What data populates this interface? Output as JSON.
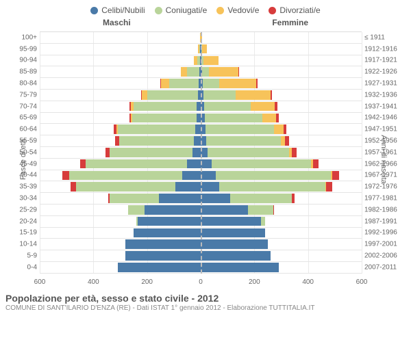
{
  "chart": {
    "type": "population-pyramid",
    "title": "Popolazione per età, sesso e stato civile - 2012",
    "subtitle": "COMUNE DI SANT'ILARIO D'ENZA (RE) - Dati ISTAT 1° gennaio 2012 - Elaborazione TUTTITALIA.IT",
    "male_label": "Maschi",
    "female_label": "Femmine",
    "y_left_title": "Fasce di età",
    "y_right_title": "Anni di nascita",
    "x_max": 600,
    "x_ticks": [
      600,
      400,
      200,
      0,
      200,
      400,
      600
    ],
    "colors": {
      "celibi": "#4A7AA8",
      "coniugati": "#B9D49A",
      "vedovi": "#F7C35A",
      "divorziati": "#D73C3C",
      "grid": "#e5e5e5",
      "background": "#ffffff"
    },
    "legend": [
      {
        "label": "Celibi/Nubili",
        "color": "#4A7AA8"
      },
      {
        "label": "Coniugati/e",
        "color": "#B9D49A"
      },
      {
        "label": "Vedovi/e",
        "color": "#F7C35A"
      },
      {
        "label": "Divorziati/e",
        "color": "#D73C3C"
      }
    ],
    "age_labels": [
      "0-4",
      "5-9",
      "10-14",
      "15-19",
      "20-24",
      "25-29",
      "30-34",
      "35-39",
      "40-44",
      "45-49",
      "50-54",
      "55-59",
      "60-64",
      "65-69",
      "70-74",
      "75-79",
      "80-84",
      "85-89",
      "90-94",
      "95-99",
      "100+"
    ],
    "birth_labels": [
      "2007-2011",
      "2002-2006",
      "1997-2001",
      "1992-1996",
      "1987-1991",
      "1982-1986",
      "1977-1981",
      "1972-1976",
      "1967-1971",
      "1962-1966",
      "1957-1961",
      "1952-1956",
      "1947-1951",
      "1942-1946",
      "1937-1941",
      "1932-1936",
      "1927-1931",
      "1922-1926",
      "1917-1921",
      "1912-1916",
      "≤ 1911"
    ],
    "males": [
      [
        310,
        0,
        0,
        0
      ],
      [
        280,
        0,
        0,
        0
      ],
      [
        280,
        0,
        0,
        0
      ],
      [
        250,
        0,
        0,
        0
      ],
      [
        235,
        5,
        0,
        0
      ],
      [
        210,
        60,
        0,
        0
      ],
      [
        155,
        185,
        0,
        5
      ],
      [
        95,
        370,
        0,
        20
      ],
      [
        70,
        420,
        0,
        25
      ],
      [
        50,
        380,
        0,
        20
      ],
      [
        30,
        310,
        0,
        15
      ],
      [
        25,
        280,
        0,
        15
      ],
      [
        20,
        290,
        5,
        10
      ],
      [
        15,
        240,
        5,
        5
      ],
      [
        15,
        235,
        10,
        5
      ],
      [
        10,
        190,
        20,
        3
      ],
      [
        8,
        110,
        30,
        2
      ],
      [
        5,
        45,
        25,
        0
      ],
      [
        3,
        10,
        12,
        0
      ],
      [
        2,
        2,
        5,
        0
      ],
      [
        1,
        0,
        2,
        0
      ]
    ],
    "females": [
      [
        290,
        0,
        0,
        0
      ],
      [
        260,
        0,
        0,
        0
      ],
      [
        250,
        0,
        0,
        0
      ],
      [
        240,
        0,
        0,
        0
      ],
      [
        225,
        15,
        0,
        0
      ],
      [
        175,
        95,
        0,
        3
      ],
      [
        110,
        230,
        0,
        10
      ],
      [
        70,
        395,
        3,
        22
      ],
      [
        55,
        430,
        5,
        25
      ],
      [
        40,
        370,
        8,
        22
      ],
      [
        25,
        305,
        10,
        18
      ],
      [
        20,
        280,
        15,
        15
      ],
      [
        18,
        255,
        35,
        12
      ],
      [
        15,
        215,
        50,
        10
      ],
      [
        12,
        175,
        90,
        8
      ],
      [
        10,
        120,
        130,
        5
      ],
      [
        8,
        60,
        140,
        3
      ],
      [
        5,
        25,
        110,
        2
      ],
      [
        3,
        8,
        55,
        0
      ],
      [
        2,
        2,
        18,
        0
      ],
      [
        1,
        0,
        5,
        0
      ]
    ]
  }
}
